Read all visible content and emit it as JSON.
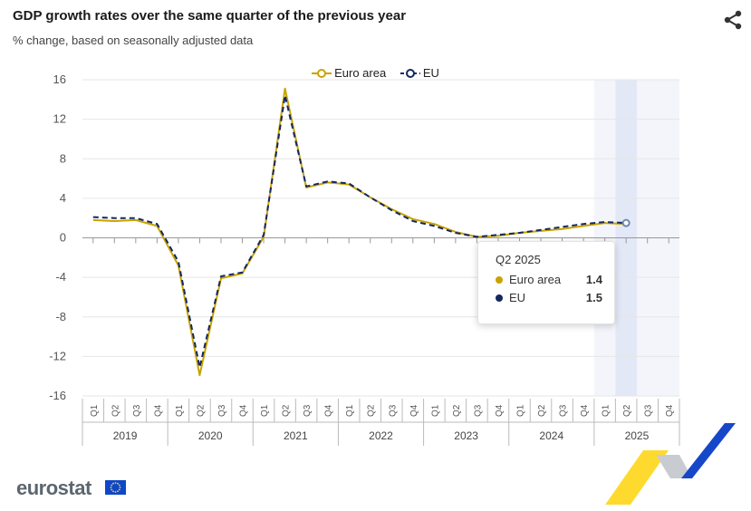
{
  "header": {
    "title": "GDP growth rates over the same quarter of the previous year",
    "subtitle": "% change, based on seasonally adjusted data"
  },
  "legend": [
    {
      "label": "Euro area",
      "color": "#c9a300"
    },
    {
      "label": "EU",
      "color": "#13285e"
    }
  ],
  "tooltip": {
    "heading": "Q2 2025",
    "rows": [
      {
        "label": "Euro area",
        "value": "1.4",
        "color": "#c9a300"
      },
      {
        "label": "EU",
        "value": "1.5",
        "color": "#13285e"
      }
    ]
  },
  "brand": {
    "logo_text": "eurostat"
  },
  "chart_data": {
    "type": "line",
    "title": "GDP growth rates over the same quarter of the previous year",
    "subtitle": "% change, based on seasonally adjusted data",
    "yticks": [
      16,
      12,
      8,
      4,
      0,
      -4,
      -8,
      -12,
      -16
    ],
    "ylim": [
      -16,
      16
    ],
    "grid": true,
    "legend_position": "top-center",
    "years": [
      "2019",
      "2020",
      "2021",
      "2022",
      "2023",
      "2024",
      "2025"
    ],
    "quarters": [
      "Q1",
      "Q2",
      "Q3",
      "Q4"
    ],
    "categories": [
      "2019-Q1",
      "2019-Q2",
      "2019-Q3",
      "2019-Q4",
      "2020-Q1",
      "2020-Q2",
      "2020-Q3",
      "2020-Q4",
      "2021-Q1",
      "2021-Q2",
      "2021-Q3",
      "2021-Q4",
      "2022-Q1",
      "2022-Q2",
      "2022-Q3",
      "2022-Q4",
      "2023-Q1",
      "2023-Q2",
      "2023-Q3",
      "2023-Q4",
      "2024-Q1",
      "2024-Q2",
      "2024-Q3",
      "2024-Q4",
      "2025-Q1",
      "2025-Q2",
      "2025-Q3",
      "2025-Q4"
    ],
    "highlighted_category": "2025-Q2",
    "series": [
      {
        "name": "Euro area",
        "color": "#c9a300",
        "dash": "solid",
        "values": [
          1.8,
          1.7,
          1.8,
          1.2,
          -2.8,
          -13.9,
          -4.1,
          -3.6,
          0.1,
          15.1,
          5.1,
          5.6,
          5.4,
          4.1,
          2.9,
          1.9,
          1.4,
          0.6,
          0.1,
          0.2,
          0.5,
          0.7,
          0.9,
          1.2,
          1.5,
          1.4,
          null,
          null
        ]
      },
      {
        "name": "EU",
        "color": "#13285e",
        "dash": "dashed",
        "values": [
          2.1,
          2.0,
          2.0,
          1.4,
          -2.4,
          -13.1,
          -3.9,
          -3.5,
          0.3,
          14.4,
          5.2,
          5.7,
          5.5,
          4.1,
          2.8,
          1.7,
          1.2,
          0.5,
          0.1,
          0.3,
          0.5,
          0.8,
          1.1,
          1.4,
          1.6,
          1.5,
          null,
          null
        ]
      }
    ]
  }
}
